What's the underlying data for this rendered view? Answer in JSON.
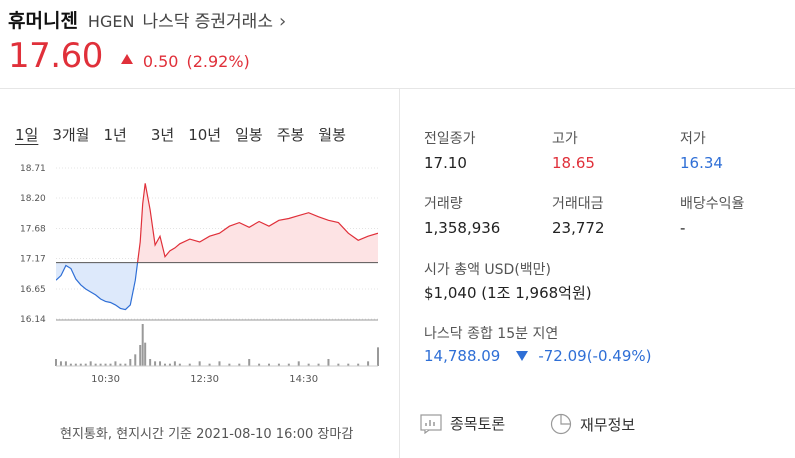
{
  "header": {
    "name": "휴머니젠",
    "ticker": "HGEN",
    "exchange": "나스닥 증권거래소",
    "chevron": "›"
  },
  "quote": {
    "price": "17.60",
    "change": "0.50",
    "change_pct": "(2.92%)",
    "direction": "up"
  },
  "tabs": [
    "1일",
    "3개월",
    "1년",
    "3년",
    "10년",
    "일봉",
    "주봉",
    "월봉"
  ],
  "active_tab": "1일",
  "chart_data": {
    "type": "area",
    "y_ticks": [
      "18.71",
      "18.20",
      "17.68",
      "17.17",
      "16.65",
      "16.14"
    ],
    "ylim": [
      16.14,
      18.71
    ],
    "baseline": 17.1,
    "x_ticks": [
      "10:30",
      "12:30",
      "14:30"
    ],
    "x_tick_times": [
      10.5,
      12.5,
      14.5
    ],
    "x_range": [
      9.5,
      16.0
    ],
    "series": [
      {
        "x": [
          9.5,
          9.6,
          9.7,
          9.8,
          9.9,
          10.0,
          10.1,
          10.2,
          10.3,
          10.4,
          10.5,
          10.6,
          10.7,
          10.8,
          10.9,
          11.0,
          11.1,
          11.2,
          11.25,
          11.3,
          11.4,
          11.5,
          11.6,
          11.7,
          11.8,
          11.9,
          12.0,
          12.2,
          12.4,
          12.6,
          12.8,
          13.0,
          13.2,
          13.4,
          13.6,
          13.8,
          14.0,
          14.2,
          14.4,
          14.6,
          14.8,
          15.0,
          15.2,
          15.4,
          15.6,
          15.8,
          16.0
        ],
        "y": [
          16.8,
          16.88,
          17.05,
          17.0,
          16.82,
          16.72,
          16.65,
          16.6,
          16.55,
          16.48,
          16.44,
          16.42,
          16.38,
          16.32,
          16.3,
          16.38,
          16.8,
          17.45,
          18.1,
          18.45,
          18.0,
          17.4,
          17.55,
          17.2,
          17.3,
          17.35,
          17.42,
          17.5,
          17.45,
          17.55,
          17.6,
          17.72,
          17.78,
          17.7,
          17.8,
          17.72,
          17.82,
          17.85,
          17.9,
          17.95,
          17.88,
          17.82,
          17.78,
          17.6,
          17.48,
          17.55,
          17.6
        ]
      }
    ],
    "volume": [
      3,
      2,
      2,
      1,
      1,
      1,
      1,
      2,
      1,
      1,
      1,
      1,
      2,
      1,
      1,
      3,
      5,
      9,
      18,
      10,
      3,
      2,
      2,
      1,
      1,
      2,
      1,
      1,
      2,
      1,
      2,
      1,
      1,
      3,
      1,
      1,
      1,
      1,
      2,
      1,
      1,
      3,
      1,
      1,
      1,
      2,
      8
    ]
  },
  "footnote": "현지통화, 현지시간 기준 2021-08-10 16:00 장마감",
  "stats": [
    {
      "label": "전일종가",
      "value": "17.10",
      "color": "normal"
    },
    {
      "label": "고가",
      "value": "18.65",
      "color": "red"
    },
    {
      "label": "저가",
      "value": "16.34",
      "color": "blue"
    },
    {
      "label": "거래량",
      "value": "1,358,936",
      "color": "normal"
    },
    {
      "label": "거래대금",
      "value": "23,772",
      "color": "normal"
    },
    {
      "label": "배당수익율",
      "value": "-",
      "color": "normal"
    }
  ],
  "market_cap": {
    "label": "시가 총액 USD(백만)",
    "value": "$1,040 (1조 1,968억원)"
  },
  "index": {
    "label": "나스닥 종합 15분 지연",
    "value": "14,788.09",
    "change": "-72.09",
    "change_pct": "(-0.49%)"
  },
  "buttons": {
    "discussion": "종목토론",
    "financials": "재무정보"
  },
  "colors": {
    "up": "#e0303a",
    "down": "#2f6fd6",
    "up_fill": "#fde3e4",
    "down_fill": "#dde9fb"
  }
}
